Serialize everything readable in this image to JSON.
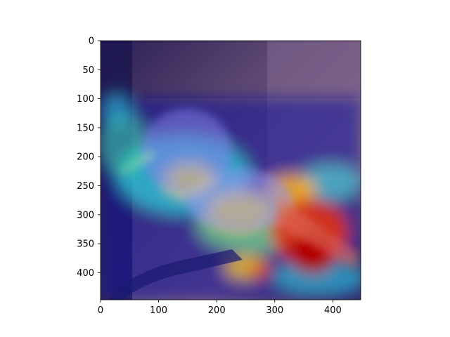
{
  "figure": {
    "description": "Heatmap (class activation map) overlaid on a photo of a bird perched on a branch",
    "x_axis": {
      "ticks": [
        "0",
        "100",
        "200",
        "300",
        "400"
      ],
      "range": [
        0,
        448
      ]
    },
    "y_axis": {
      "ticks": [
        "0",
        "50",
        "100",
        "150",
        "200",
        "250",
        "300",
        "350",
        "400"
      ],
      "range": [
        0,
        448
      ]
    }
  },
  "colors": {
    "background_photo": "#5a4670",
    "overlay_low": "#1a1a8c",
    "overlay_mid": "#2ecfd8",
    "overlay_high": "#ffe21a",
    "overlay_peak": "#c40000"
  }
}
